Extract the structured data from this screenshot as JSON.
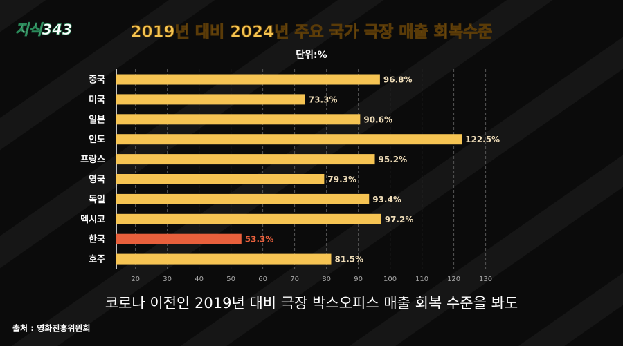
{
  "logo": "지식343",
  "caption": "코로나 이전인 2019년 대비 극장 박스오피스 매출 회복 수준을 봐도",
  "source": "출처 : 영화진흥위원회",
  "chart_data": {
    "type": "bar",
    "orientation": "horizontal",
    "title": "2019년 대비 2024년 주요 국가 극장 매출 회복수준",
    "subtitle": "단위:%",
    "categories": [
      "중국",
      "미국",
      "일본",
      "인도",
      "프랑스",
      "영국",
      "독일",
      "멕시코",
      "한국",
      "호주"
    ],
    "values": [
      96.8,
      73.3,
      90.6,
      122.5,
      95.2,
      79.3,
      93.4,
      97.2,
      53.3,
      81.5
    ],
    "value_labels": [
      "96.8%",
      "73.3%",
      "90.6%",
      "122.5%",
      "95.2%",
      "79.3%",
      "93.4%",
      "97.2%",
      "53.3%",
      "81.5%"
    ],
    "colors": [
      "#f6c453",
      "#f6c453",
      "#f6c453",
      "#f6c453",
      "#f6c453",
      "#f6c453",
      "#f6c453",
      "#f6c453",
      "#e8603c",
      "#f6c453"
    ],
    "xlim": [
      14,
      134
    ],
    "xticks": [
      20,
      30,
      40,
      50,
      60,
      70,
      80,
      90,
      100,
      110,
      120,
      130
    ],
    "grid": true
  }
}
